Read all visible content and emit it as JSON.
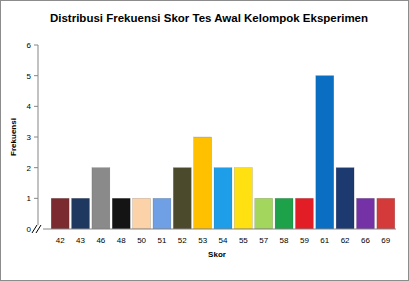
{
  "chart_data": {
    "type": "bar",
    "title": "Distribusi Frekuensi Skor Tes Awal Kelompok Eksperimen",
    "x_label": "Skor",
    "y_label": "Frekuensi",
    "categories": [
      "42",
      "43",
      "46",
      "48",
      "50",
      "51",
      "52",
      "53",
      "54",
      "55",
      "57",
      "58",
      "59",
      "61",
      "62",
      "66",
      "69"
    ],
    "values": [
      1,
      1,
      2,
      1,
      1,
      1,
      2,
      3,
      2,
      2,
      1,
      1,
      1,
      5,
      2,
      1,
      1
    ],
    "colors": [
      "#7b2b2f",
      "#1f3860",
      "#8a8a8a",
      "#141414",
      "#fcd3a8",
      "#6fa0e6",
      "#4b4a2c",
      "#ffc000",
      "#1e9ee9",
      "#ffe011",
      "#a3d65c",
      "#1da24a",
      "#e31d26",
      "#0a6fc2",
      "#1c3a70",
      "#7532a6",
      "#d43a3a"
    ],
    "ylim": [
      0,
      6
    ],
    "yticks": [
      0,
      1,
      2,
      3,
      4,
      5,
      6
    ],
    "grid": false
  }
}
